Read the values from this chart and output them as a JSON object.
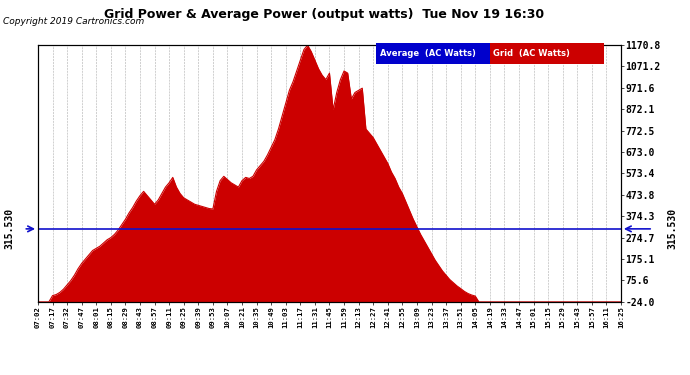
{
  "title": "Grid Power & Average Power (output watts)  Tue Nov 19 16:30",
  "copyright": "Copyright 2019 Cartronics.com",
  "ylabel_right_ticks": [
    1170.8,
    1071.2,
    971.6,
    872.1,
    772.5,
    673.0,
    573.4,
    473.8,
    374.3,
    274.7,
    175.1,
    75.6,
    -24.0
  ],
  "average_value": 315.53,
  "average_label": "315.530",
  "fill_color": "#CC0000",
  "average_line_color": "#1111CC",
  "background_color": "#ffffff",
  "grid_color": "#999999",
  "legend_average_bg": "#0000CC",
  "legend_grid_bg": "#CC0000",
  "legend_text": [
    "Average  (AC Watts)",
    "Grid  (AC Watts)"
  ],
  "x_tick_labels": [
    "07:02",
    "07:17",
    "07:32",
    "07:47",
    "08:01",
    "08:15",
    "08:29",
    "08:43",
    "08:57",
    "09:11",
    "09:25",
    "09:39",
    "09:53",
    "10:07",
    "10:21",
    "10:35",
    "10:49",
    "11:03",
    "11:17",
    "11:31",
    "11:45",
    "11:59",
    "12:13",
    "12:27",
    "12:41",
    "12:55",
    "13:09",
    "13:23",
    "13:37",
    "13:51",
    "14:05",
    "14:19",
    "14:33",
    "14:47",
    "15:01",
    "15:15",
    "15:29",
    "15:43",
    "15:57",
    "16:11",
    "16:25"
  ],
  "ymin": -24.0,
  "ymax": 1170.8,
  "data_y": [
    -24,
    -24,
    -24,
    -24,
    5,
    10,
    20,
    35,
    55,
    75,
    100,
    130,
    155,
    175,
    195,
    215,
    225,
    235,
    250,
    265,
    275,
    290,
    310,
    335,
    360,
    390,
    415,
    445,
    470,
    490,
    470,
    450,
    430,
    450,
    480,
    510,
    530,
    555,
    510,
    480,
    460,
    450,
    440,
    430,
    425,
    420,
    415,
    410,
    408,
    490,
    540,
    560,
    545,
    530,
    520,
    510,
    540,
    555,
    550,
    560,
    590,
    610,
    630,
    660,
    695,
    730,
    780,
    840,
    900,
    960,
    1000,
    1050,
    1100,
    1150,
    1170,
    1140,
    1100,
    1060,
    1030,
    1010,
    1040,
    870,
    950,
    1010,
    1050,
    1040,
    920,
    950,
    960,
    970,
    780,
    760,
    740,
    710,
    680,
    650,
    620,
    580,
    550,
    510,
    480,
    440,
    400,
    360,
    325,
    290,
    260,
    230,
    200,
    170,
    145,
    120,
    100,
    80,
    65,
    50,
    38,
    25,
    15,
    8,
    3,
    -24,
    -24,
    -24,
    -24,
    -24,
    -24,
    -24,
    -24,
    -24,
    -24,
    -24,
    -24,
    -24,
    -24,
    -24,
    -24,
    -24,
    -24,
    -24,
    -24,
    -24,
    -24,
    -24,
    -24,
    -24,
    -24,
    -24,
    -24,
    -24,
    -24,
    -24,
    -24,
    -24,
    -24,
    -24,
    -24,
    -24,
    -24,
    -24,
    -24
  ]
}
